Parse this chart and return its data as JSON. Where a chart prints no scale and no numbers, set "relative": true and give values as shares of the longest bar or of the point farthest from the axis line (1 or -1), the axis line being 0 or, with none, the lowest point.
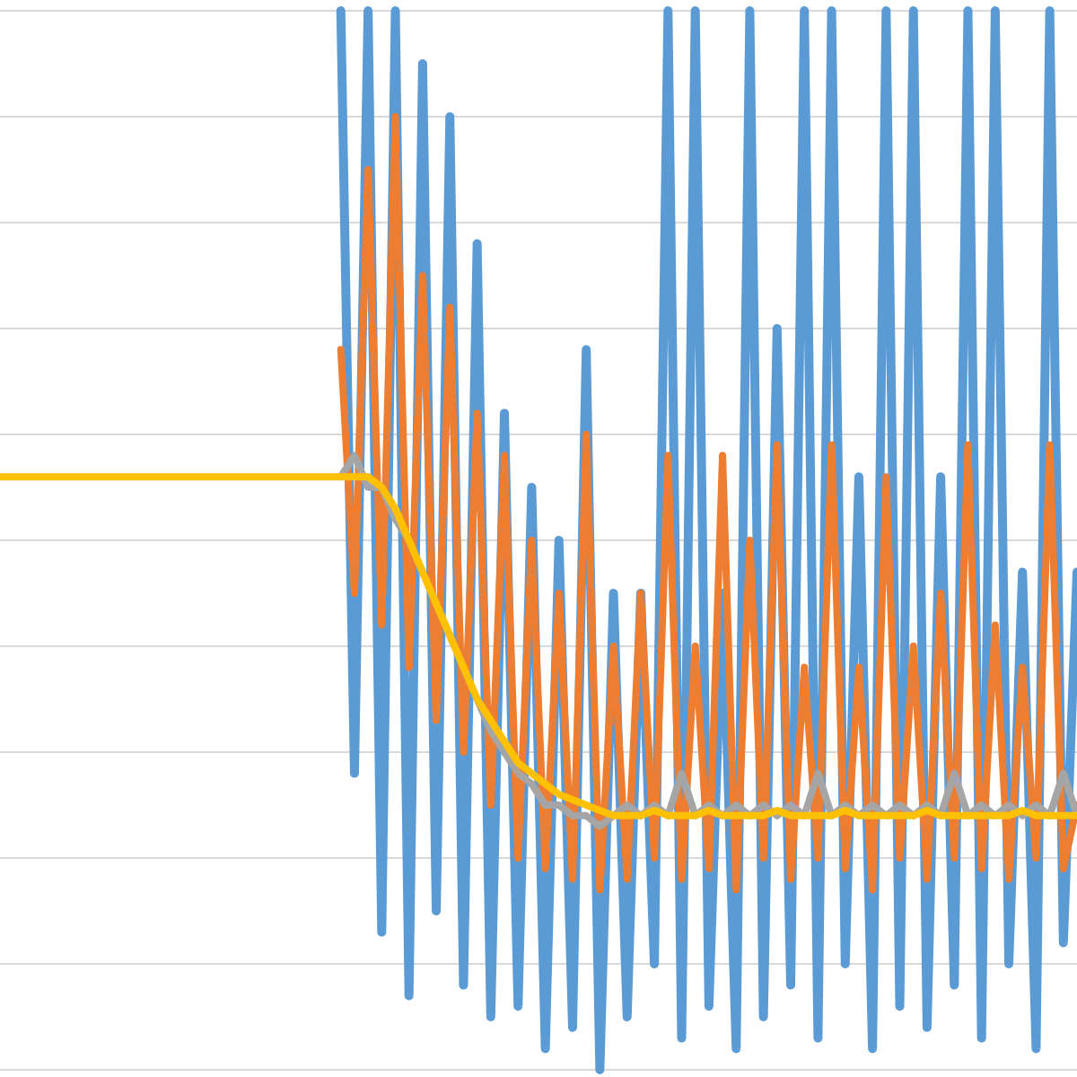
{
  "chart_data": {
    "type": "line",
    "relative": true,
    "grid": "y",
    "legend": false,
    "marker": "none",
    "line_style": "solid",
    "categories": [
      null,
      null,
      null,
      null,
      null,
      null,
      null,
      null,
      null,
      null,
      null,
      null,
      null,
      null,
      null,
      null,
      null,
      null,
      null,
      null,
      null,
      null,
      null,
      null,
      null,
      null,
      null,
      null,
      null,
      null,
      null,
      null,
      null,
      null,
      null,
      null,
      null,
      null,
      null,
      null,
      null,
      null,
      null,
      null,
      null,
      null,
      null,
      null,
      null,
      null,
      null,
      null,
      null,
      null,
      null,
      null,
      null,
      null,
      null,
      null,
      null,
      null,
      null,
      null,
      null,
      null,
      null,
      null,
      null,
      null,
      null,
      null,
      null,
      null,
      null,
      null,
      null,
      null,
      null,
      null
    ],
    "series": [
      {
        "color": "#5b9bd5",
        "values": [
          null,
          null,
          null,
          null,
          null,
          null,
          null,
          null,
          null,
          null,
          null,
          null,
          null,
          null,
          null,
          null,
          null,
          null,
          null,
          null,
          null,
          null,
          null,
          null,
          null,
          1.0,
          0.28,
          1.0,
          0.13,
          1.0,
          0.07,
          0.95,
          0.15,
          0.9,
          0.08,
          0.78,
          0.05,
          0.62,
          0.06,
          0.55,
          0.02,
          0.5,
          0.04,
          0.68,
          0.0,
          0.45,
          0.05,
          0.45,
          0.1,
          1.0,
          0.03,
          1.0,
          0.06,
          0.45,
          0.02,
          1.0,
          0.05,
          0.7,
          0.08,
          1.0,
          0.03,
          1.0,
          0.1,
          0.56,
          0.02,
          1.0,
          0.06,
          1.0,
          0.04,
          0.56,
          0.08,
          1.0,
          0.03,
          1.0,
          0.1,
          0.47,
          0.02,
          1.0,
          0.12,
          0.47
        ]
      },
      {
        "color": "#ed7d31",
        "values": [
          null,
          null,
          null,
          null,
          null,
          null,
          null,
          null,
          null,
          null,
          null,
          null,
          null,
          null,
          null,
          null,
          null,
          null,
          null,
          null,
          null,
          null,
          null,
          null,
          null,
          0.68,
          0.45,
          0.85,
          0.42,
          0.9,
          0.38,
          0.75,
          0.33,
          0.72,
          0.3,
          0.62,
          0.25,
          0.58,
          0.2,
          0.5,
          0.19,
          0.45,
          0.18,
          0.6,
          0.17,
          0.4,
          0.18,
          0.45,
          0.2,
          0.58,
          0.18,
          0.4,
          0.19,
          0.58,
          0.17,
          0.5,
          0.2,
          0.59,
          0.18,
          0.38,
          0.2,
          0.59,
          0.19,
          0.38,
          0.17,
          0.56,
          0.2,
          0.4,
          0.18,
          0.45,
          0.2,
          0.59,
          0.19,
          0.42,
          0.18,
          0.38,
          0.2,
          0.59,
          0.19,
          0.25
        ]
      },
      {
        "color": "#a5a5a5",
        "values": [
          null,
          null,
          null,
          null,
          null,
          null,
          null,
          null,
          null,
          null,
          null,
          null,
          null,
          null,
          null,
          null,
          null,
          null,
          null,
          null,
          null,
          null,
          null,
          null,
          null,
          0.56,
          0.58,
          0.55,
          0.55,
          0.52,
          0.5,
          0.47,
          0.44,
          0.41,
          0.38,
          0.35,
          0.32,
          0.3,
          0.28,
          0.27,
          0.25,
          0.25,
          0.24,
          0.24,
          0.23,
          0.24,
          0.25,
          0.24,
          0.25,
          0.24,
          0.28,
          0.24,
          0.25,
          0.24,
          0.25,
          0.24,
          0.25,
          0.24,
          0.25,
          0.24,
          0.28,
          0.24,
          0.25,
          0.24,
          0.25,
          0.24,
          0.25,
          0.24,
          0.25,
          0.24,
          0.28,
          0.24,
          0.25,
          0.24,
          0.25,
          0.24,
          0.25,
          0.24,
          0.28,
          0.24
        ]
      },
      {
        "color": "#ffc000",
        "values": [
          0.56,
          0.56,
          0.56,
          0.56,
          0.56,
          0.56,
          0.56,
          0.56,
          0.56,
          0.56,
          0.56,
          0.56,
          0.56,
          0.56,
          0.56,
          0.56,
          0.56,
          0.56,
          0.56,
          0.56,
          0.56,
          0.56,
          0.56,
          0.56,
          0.56,
          0.56,
          0.56,
          0.56,
          0.55,
          0.53,
          0.5,
          0.47,
          0.44,
          0.41,
          0.38,
          0.35,
          0.33,
          0.31,
          0.29,
          0.28,
          0.27,
          0.26,
          0.255,
          0.25,
          0.245,
          0.24,
          0.24,
          0.24,
          0.245,
          0.24,
          0.24,
          0.24,
          0.245,
          0.24,
          0.24,
          0.24,
          0.24,
          0.245,
          0.24,
          0.24,
          0.24,
          0.24,
          0.245,
          0.24,
          0.24,
          0.24,
          0.24,
          0.24,
          0.245,
          0.24,
          0.24,
          0.24,
          0.24,
          0.24,
          0.24,
          0.245,
          0.24,
          0.24,
          0.24,
          0.24
        ]
      }
    ]
  }
}
